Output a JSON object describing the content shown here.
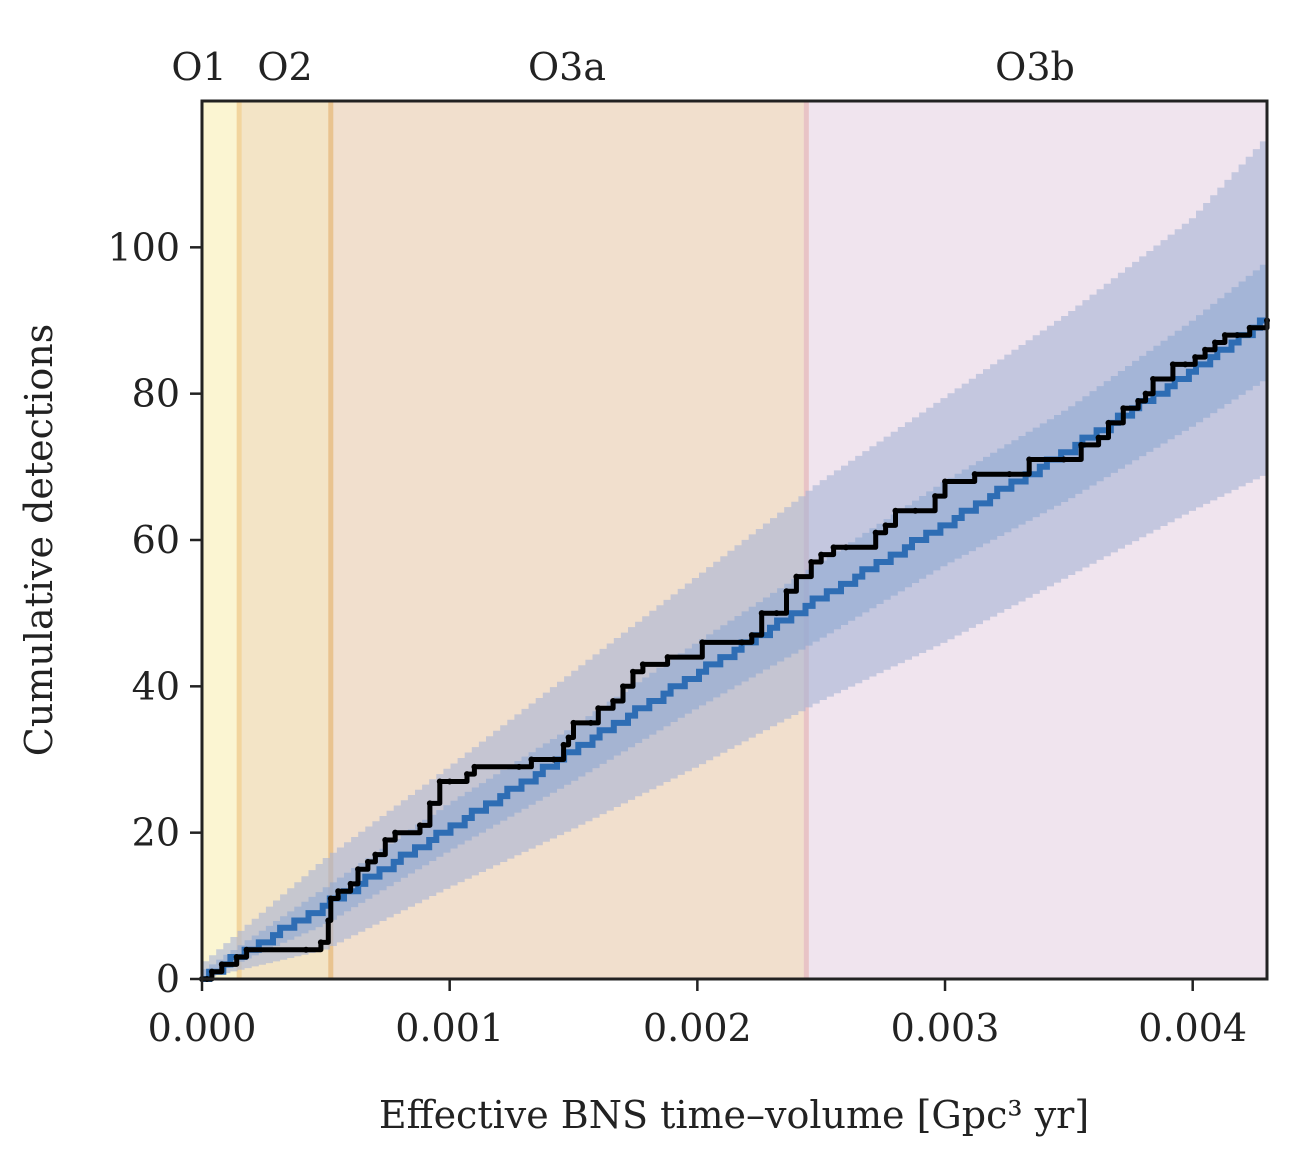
{
  "chart_data": {
    "type": "line",
    "title": "",
    "xlabel": "Effective BNS time–volume [Gpc³ yr]",
    "ylabel": "Cumulative detections",
    "xlim": [
      0,
      0.0043
    ],
    "ylim": [
      0,
      120
    ],
    "xticks": [
      0,
      0.001,
      0.002,
      0.003,
      0.004
    ],
    "xtick_labels": [
      "0.000",
      "0.001",
      "0.002",
      "0.003",
      "0.004"
    ],
    "yticks": [
      0,
      20,
      40,
      60,
      80,
      100
    ],
    "ytick_labels": [
      "0",
      "20",
      "40",
      "60",
      "80",
      "100"
    ],
    "grid": false,
    "observing_runs": [
      {
        "label": "O1",
        "x_start": 0.0,
        "x_end": 0.00015,
        "color": "#fbf5d2"
      },
      {
        "label": "O2",
        "x_start": 0.00015,
        "x_end": 0.00052,
        "color": "#f3e4c6"
      },
      {
        "label": "O3a",
        "x_start": 0.00052,
        "x_end": 0.00244,
        "color": "#f1dfcd"
      },
      {
        "label": "O3b",
        "x_start": 0.00244,
        "x_end": 0.0043,
        "color": "#f0e4ee"
      }
    ],
    "run_boundary_colors": [
      "#f2d59e",
      "#e9c38f",
      "#e8c3c6"
    ],
    "expected": {
      "color": "#2e6db4",
      "x": [
        0,
        0.0005,
        0.001,
        0.0015,
        0.002,
        0.0025,
        0.003,
        0.0035,
        0.004,
        0.0043
      ],
      "median": [
        0,
        10,
        20.5,
        31,
        41.5,
        52,
        62,
        72,
        83,
        90
      ],
      "band_50_low": [
        0,
        7.5,
        17.5,
        27,
        37,
        46.5,
        56.5,
        65.5,
        75.5,
        82
      ],
      "band_50_high": [
        1,
        12.5,
        24,
        34.5,
        46,
        57,
        68,
        78,
        90,
        98
      ],
      "band_90_low": [
        0,
        4,
        12.5,
        20.5,
        29,
        38,
        46,
        55,
        64,
        69
      ],
      "band_90_high": [
        2,
        16.5,
        29,
        42,
        55,
        68,
        79.5,
        91,
        104,
        115
      ],
      "band_50_color": "#8fa8d2",
      "band_90_color": "#aab5d5"
    },
    "observed": {
      "color": "#000000",
      "x": [
        0,
        2e-05,
        4e-05,
        8e-05,
        0.00014,
        0.00018,
        0.00042,
        0.00048,
        0.00051,
        0.00052,
        0.00055,
        0.0006,
        0.00063,
        0.00067,
        0.0007,
        0.00074,
        0.00078,
        0.00088,
        0.00092,
        0.00096,
        0.001,
        0.00107,
        0.0011,
        0.00128,
        0.00133,
        0.00142,
        0.00146,
        0.00148,
        0.0015,
        0.00157,
        0.0016,
        0.00166,
        0.0017,
        0.00174,
        0.00178,
        0.00188,
        0.00202,
        0.00218,
        0.00222,
        0.00226,
        0.00232,
        0.00236,
        0.0024,
        0.00246,
        0.0025,
        0.00255,
        0.0026,
        0.00272,
        0.00276,
        0.0028,
        0.00288,
        0.00296,
        0.003,
        0.00312,
        0.00326,
        0.00334,
        0.00348,
        0.00355,
        0.00362,
        0.00366,
        0.00372,
        0.00378,
        0.00381,
        0.00384,
        0.00392,
        0.00397,
        0.00401,
        0.00405,
        0.00409,
        0.00413,
        0.00418,
        0.00423,
        0.0043
      ],
      "y": [
        0,
        0,
        1,
        2,
        3,
        4,
        4,
        5,
        8,
        11,
        12,
        13,
        15,
        16,
        17,
        19,
        20,
        21,
        24,
        27,
        27,
        28,
        29,
        29,
        30,
        30,
        32,
        33,
        35,
        35,
        37,
        38,
        40,
        42,
        43,
        44,
        46,
        46,
        47,
        50,
        50,
        53,
        55,
        57,
        58,
        59,
        59,
        61,
        62,
        64,
        64,
        66,
        68,
        69,
        69,
        71,
        71,
        73,
        74,
        76,
        78,
        79,
        80,
        82,
        84,
        84,
        85,
        86,
        87,
        88,
        88,
        89,
        90
      ]
    }
  }
}
